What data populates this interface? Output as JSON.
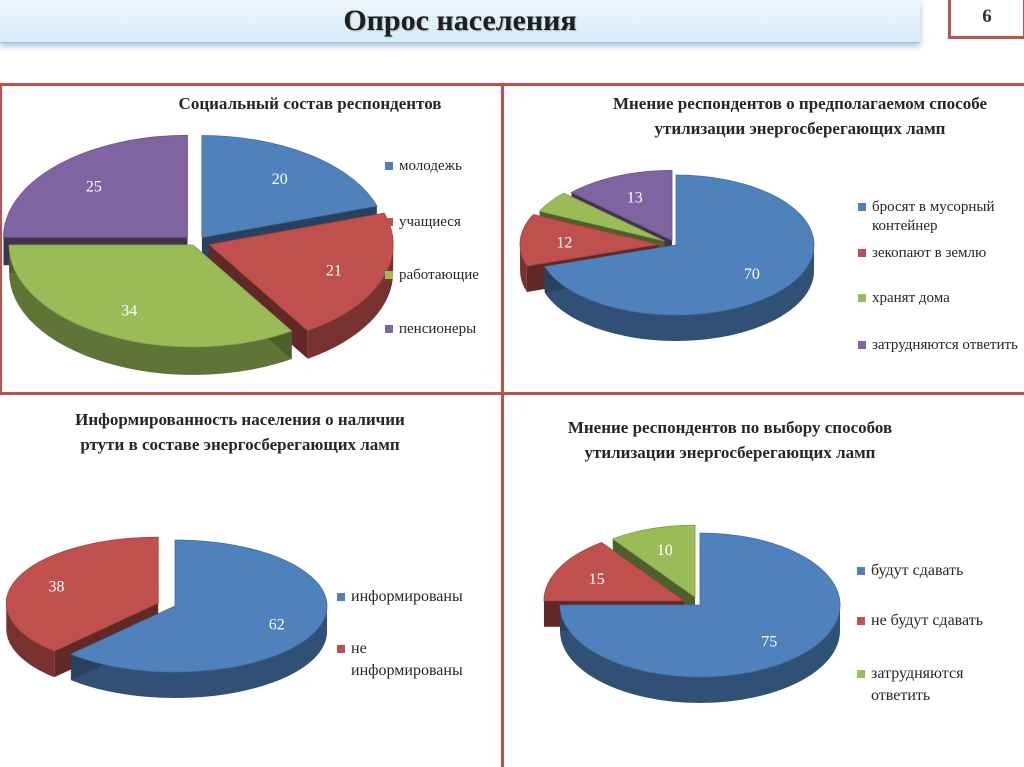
{
  "page": {
    "title": "Опрос населения",
    "number": "6"
  },
  "colors": {
    "blue": "#4f81bd",
    "red": "#c0504d",
    "green": "#9bbb59",
    "purple": "#8064a2",
    "rule": "#c0504d",
    "title_bar": "#d6ecf8"
  },
  "chart_data": [
    {
      "type": "pie",
      "title": "Социальный состав респондентов",
      "categories": [
        "молодежь",
        "учащиеся",
        "работающие",
        "пенсионеры"
      ],
      "values": [
        20,
        21,
        34,
        25
      ],
      "colors": [
        "#4f81bd",
        "#c0504d",
        "#9bbb59",
        "#8064a2"
      ],
      "legend": "right",
      "exploded": true
    },
    {
      "type": "pie",
      "title": "Мнение респондентов о предполагаемом способе утилизации энергосберегающих ламп",
      "categories": [
        "бросят в мусорный контейнер",
        "зекопают в землю",
        "хранят дома",
        "затрудняются ответить"
      ],
      "values": [
        70,
        12,
        5,
        13
      ],
      "value_labels": [
        "70",
        "12",
        "",
        "13"
      ],
      "colors": [
        "#4f81bd",
        "#c0504d",
        "#9bbb59",
        "#8064a2"
      ],
      "legend": "right",
      "exploded": true
    },
    {
      "type": "pie",
      "title": "Информированность населения о наличии ртути в составе энергосберегающих ламп",
      "categories": [
        "информированы",
        "не информированы"
      ],
      "values": [
        62,
        38
      ],
      "colors": [
        "#4f81bd",
        "#c0504d"
      ],
      "legend": "right",
      "exploded": true
    },
    {
      "type": "pie",
      "title": "Мнение респондентов по выбору способов утилизации энергосберегающих ламп",
      "categories": [
        "будут сдавать",
        "не будут сдавать",
        "затрудняются ответить"
      ],
      "values": [
        75,
        15,
        10
      ],
      "colors": [
        "#4f81bd",
        "#c0504d",
        "#9bbb59"
      ],
      "legend": "right",
      "exploded": true
    }
  ]
}
